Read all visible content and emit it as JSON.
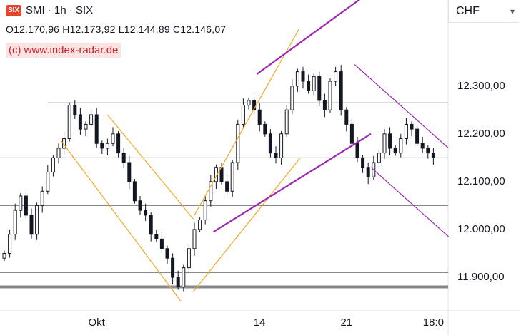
{
  "header": {
    "logo_text": "SIX",
    "title": "SMI · 1h · SIX",
    "ohlc": "O12.170,96 H12.173,92 L12.144,89 C12.146,07",
    "credit": "(c) www.index-radar.de"
  },
  "currency": {
    "label": "CHF"
  },
  "chart_data": {
    "type": "candlestick",
    "title": "SMI · 1h · SIX",
    "ylim": [
      11830,
      12480
    ],
    "y_ticks": [
      "12.300,00",
      "12.200,00",
      "12.100,00",
      "12.000,00",
      "11.900,00"
    ],
    "y_tick_values": [
      12300,
      12200,
      12100,
      12000,
      11900
    ],
    "x_ticks": [
      "Okt",
      "14",
      "21",
      "18:0"
    ],
    "x_tick_index": [
      17,
      47,
      63,
      79
    ],
    "horizontal_levels": [
      12265,
      12150,
      12050,
      11910,
      11880
    ],
    "price_series": [
      11950,
      11990,
      12040,
      12070,
      12030,
      11990,
      12050,
      12080,
      12120,
      12150,
      12170,
      12190,
      12260,
      12240,
      12210,
      12220,
      12240,
      12180,
      12170,
      12180,
      12200,
      12160,
      12140,
      12100,
      12060,
      12040,
      12030,
      11990,
      11980,
      11960,
      11940,
      11900,
      11880,
      11920,
      11960,
      12000,
      12020,
      12060,
      12100,
      12130,
      12100,
      12080,
      12140,
      12220,
      12260,
      12270,
      12250,
      12220,
      12200,
      12160,
      12150,
      12200,
      12250,
      12300,
      12330,
      12310,
      12290,
      12320,
      12270,
      12250,
      12310,
      12330,
      12250,
      12220,
      12180,
      12150,
      12130,
      12110,
      12140,
      12160,
      12200,
      12170,
      12160,
      12190,
      12220,
      12210,
      12180,
      12170,
      12160,
      12150
    ]
  },
  "colors": {
    "orange": "#f5a623",
    "purple": "#9c27b0",
    "level": "#777777",
    "candle": "#131722"
  }
}
